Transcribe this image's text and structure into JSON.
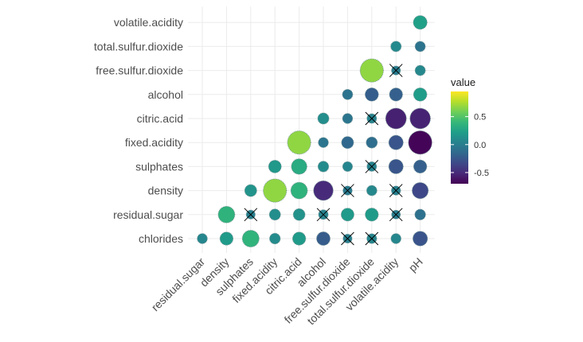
{
  "chart_data": {
    "type": "correlogram",
    "x_labels": [
      "residual.sugar",
      "density",
      "sulphates",
      "fixed.acidity",
      "citric.acid",
      "alcohol",
      "free.sulfur.dioxide",
      "total.sulfur.dioxide",
      "volatile.acidity",
      "pH"
    ],
    "y_labels": [
      "chloride s",
      "residual.sugar",
      "density",
      "sulphates",
      "fixed.acidity",
      "citric.acid",
      "alcohol",
      "free.sulfur.dioxide",
      "total.sulfur.dioxide",
      "volatile.acidity"
    ],
    "y_labels_display": [
      "chlorides",
      "residual.sugar",
      "density",
      "sulphates",
      "fixed.acidity",
      "citric.acid",
      "alcohol",
      "free.sulfur.dioxide",
      "total.sulfur.dioxide",
      "volatile.acidity"
    ],
    "cells": [
      {
        "y": "chlorides",
        "x": "residual.sugar",
        "value": 0.06,
        "insignificant": false
      },
      {
        "y": "chlorides",
        "x": "density",
        "value": 0.2,
        "insignificant": false
      },
      {
        "y": "chlorides",
        "x": "sulphates",
        "value": 0.37,
        "insignificant": false
      },
      {
        "y": "chlorides",
        "x": "fixed.acidity",
        "value": 0.09,
        "insignificant": false
      },
      {
        "y": "chlorides",
        "x": "citric.acid",
        "value": 0.2,
        "insignificant": false
      },
      {
        "y": "chlorides",
        "x": "alcohol",
        "value": -0.22,
        "insignificant": false
      },
      {
        "y": "chlorides",
        "x": "free.sulfur.dioxide",
        "value": 0.01,
        "insignificant": true
      },
      {
        "y": "chlorides",
        "x": "total.sulfur.dioxide",
        "value": 0.05,
        "insignificant": true
      },
      {
        "y": "chlorides",
        "x": "volatile.acidity",
        "value": 0.06,
        "insignificant": false
      },
      {
        "y": "chlorides",
        "x": "pH",
        "value": -0.27,
        "insignificant": false
      },
      {
        "y": "residual.sugar",
        "x": "density",
        "value": 0.36,
        "insignificant": false
      },
      {
        "y": "residual.sugar",
        "x": "sulphates",
        "value": 0.01,
        "insignificant": true
      },
      {
        "y": "residual.sugar",
        "x": "fixed.acidity",
        "value": 0.11,
        "insignificant": false
      },
      {
        "y": "residual.sugar",
        "x": "citric.acid",
        "value": 0.14,
        "insignificant": false
      },
      {
        "y": "residual.sugar",
        "x": "alcohol",
        "value": 0.04,
        "insignificant": true
      },
      {
        "y": "residual.sugar",
        "x": "free.sulfur.dioxide",
        "value": 0.19,
        "insignificant": false
      },
      {
        "y": "residual.sugar",
        "x": "total.sulfur.dioxide",
        "value": 0.2,
        "insignificant": false
      },
      {
        "y": "residual.sugar",
        "x": "volatile.acidity",
        "value": 0.0,
        "insignificant": true
      },
      {
        "y": "residual.sugar",
        "x": "pH",
        "value": -0.09,
        "insignificant": false
      },
      {
        "y": "density",
        "x": "sulphates",
        "value": 0.15,
        "insignificant": false
      },
      {
        "y": "density",
        "x": "fixed.acidity",
        "value": 0.67,
        "insignificant": false
      },
      {
        "y": "density",
        "x": "citric.acid",
        "value": 0.36,
        "insignificant": false
      },
      {
        "y": "density",
        "x": "alcohol",
        "value": -0.5,
        "insignificant": false
      },
      {
        "y": "density",
        "x": "free.sulfur.dioxide",
        "value": -0.02,
        "insignificant": true
      },
      {
        "y": "density",
        "x": "total.sulfur.dioxide",
        "value": 0.07,
        "insignificant": false
      },
      {
        "y": "density",
        "x": "volatile.acidity",
        "value": 0.02,
        "insignificant": true
      },
      {
        "y": "density",
        "x": "pH",
        "value": -0.34,
        "insignificant": false
      },
      {
        "y": "sulphates",
        "x": "fixed.acidity",
        "value": 0.18,
        "insignificant": false
      },
      {
        "y": "sulphates",
        "x": "citric.acid",
        "value": 0.31,
        "insignificant": false
      },
      {
        "y": "sulphates",
        "x": "alcohol",
        "value": 0.09,
        "insignificant": false
      },
      {
        "y": "sulphates",
        "x": "free.sulfur.dioxide",
        "value": 0.05,
        "insignificant": false
      },
      {
        "y": "sulphates",
        "x": "total.sulfur.dioxide",
        "value": 0.04,
        "insignificant": true
      },
      {
        "y": "sulphates",
        "x": "volatile.acidity",
        "value": -0.26,
        "insignificant": false
      },
      {
        "y": "sulphates",
        "x": "pH",
        "value": -0.2,
        "insignificant": false
      },
      {
        "y": "fixed.acidity",
        "x": "citric.acid",
        "value": 0.67,
        "insignificant": false
      },
      {
        "y": "fixed.acidity",
        "x": "alcohol",
        "value": -0.06,
        "insignificant": false
      },
      {
        "y": "fixed.acidity",
        "x": "free.sulfur.dioxide",
        "value": -0.15,
        "insignificant": false
      },
      {
        "y": "fixed.acidity",
        "x": "total.sulfur.dioxide",
        "value": -0.11,
        "insignificant": false
      },
      {
        "y": "fixed.acidity",
        "x": "volatile.acidity",
        "value": -0.26,
        "insignificant": false
      },
      {
        "y": "fixed.acidity",
        "x": "pH",
        "value": -0.68,
        "insignificant": false
      },
      {
        "y": "citric.acid",
        "x": "alcohol",
        "value": 0.11,
        "insignificant": false
      },
      {
        "y": "citric.acid",
        "x": "free.sulfur.dioxide",
        "value": -0.06,
        "insignificant": false
      },
      {
        "y": "citric.acid",
        "x": "total.sulfur.dioxide",
        "value": 0.04,
        "insignificant": true
      },
      {
        "y": "citric.acid",
        "x": "volatile.acidity",
        "value": -0.55,
        "insignificant": false
      },
      {
        "y": "citric.acid",
        "x": "pH",
        "value": -0.54,
        "insignificant": false
      },
      {
        "y": "alcohol",
        "x": "free.sulfur.dioxide",
        "value": -0.07,
        "insignificant": false
      },
      {
        "y": "alcohol",
        "x": "total.sulfur.dioxide",
        "value": -0.21,
        "insignificant": false
      },
      {
        "y": "alcohol",
        "x": "volatile.acidity",
        "value": -0.2,
        "insignificant": false
      },
      {
        "y": "alcohol",
        "x": "pH",
        "value": 0.21,
        "insignificant": false
      },
      {
        "y": "free.sulfur.dioxide",
        "x": "total.sulfur.dioxide",
        "value": 0.67,
        "insignificant": false
      },
      {
        "y": "free.sulfur.dioxide",
        "x": "volatile.acidity",
        "value": -0.01,
        "insignificant": true
      },
      {
        "y": "free.sulfur.dioxide",
        "x": "pH",
        "value": 0.07,
        "insignificant": false
      },
      {
        "y": "total.sulfur.dioxide",
        "x": "volatile.acidity",
        "value": 0.08,
        "insignificant": false
      },
      {
        "y": "total.sulfur.dioxide",
        "x": "pH",
        "value": -0.07,
        "insignificant": false
      },
      {
        "y": "volatile.acidity",
        "x": "pH",
        "value": 0.23,
        "insignificant": false
      }
    ],
    "legend": {
      "title": "value",
      "position": "right",
      "ticks": [
        {
          "value": 0.5,
          "label": "0.5"
        },
        {
          "value": 0.0,
          "label": "0.0"
        },
        {
          "value": -0.5,
          "label": "-0.5"
        }
      ],
      "range": [
        -0.7,
        0.95
      ]
    },
    "grid": true,
    "palette": [
      "#440154",
      "#482878",
      "#3e4989",
      "#31688e",
      "#26828e",
      "#1f9e89",
      "#35b779",
      "#6ece58",
      "#b5de2b",
      "#fde725"
    ]
  }
}
